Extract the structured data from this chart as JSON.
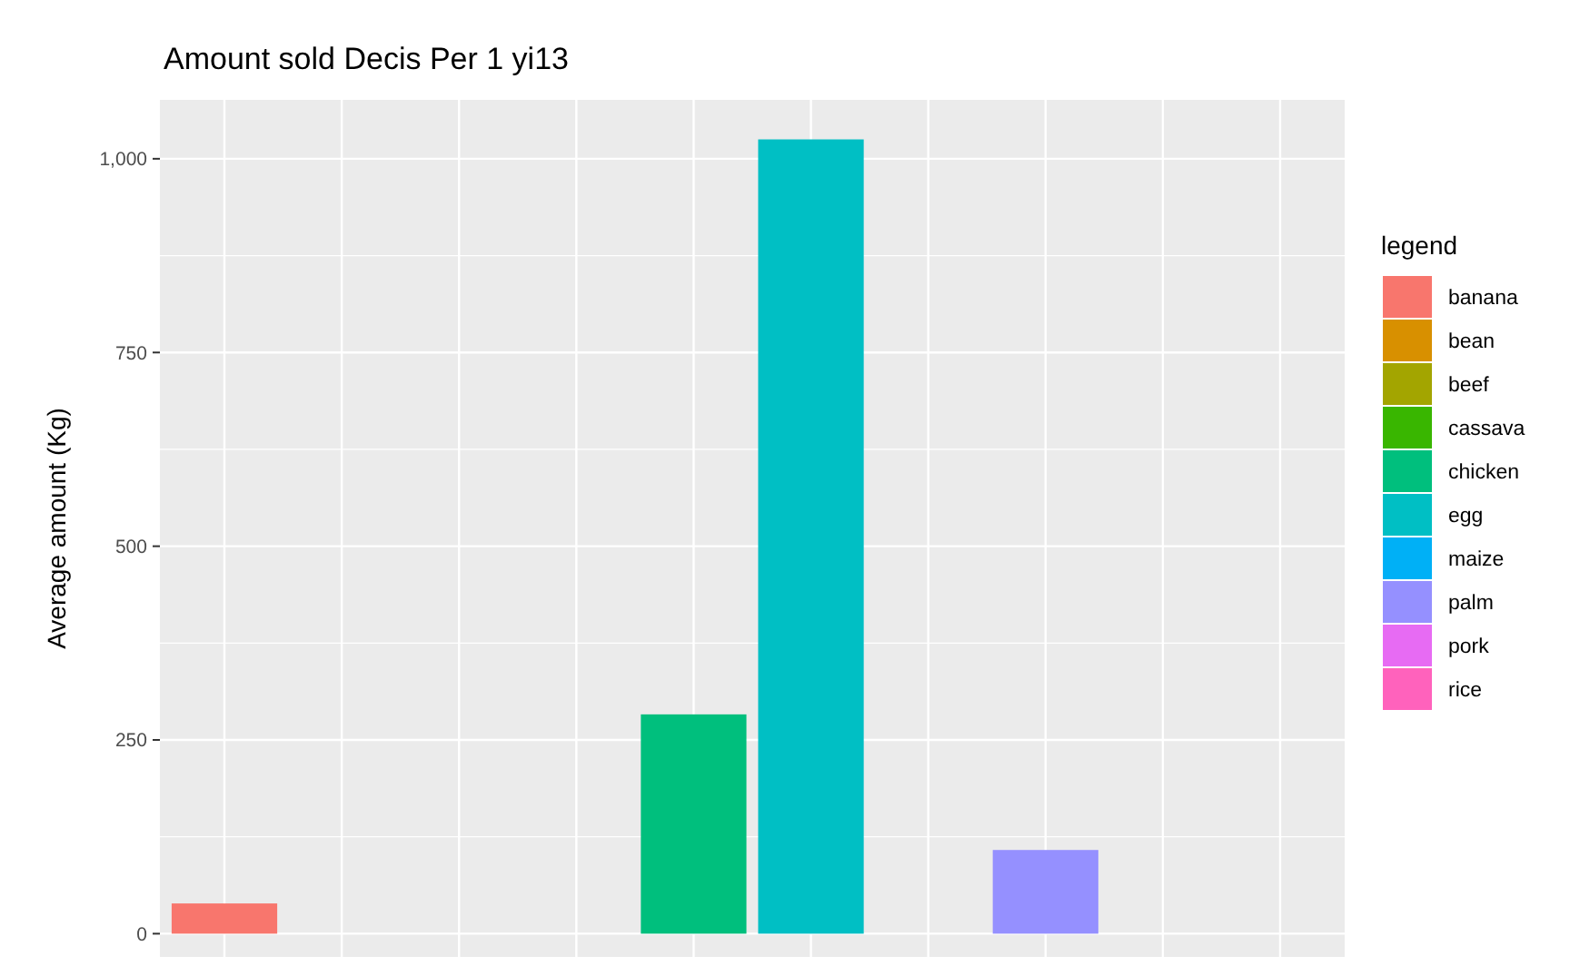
{
  "chart_data": {
    "type": "bar",
    "title": "Amount sold Decis Per 1 yi13",
    "ylabel": "Average amount (Kg)",
    "legend_title": "legend",
    "categories": [
      null,
      null,
      null,
      null,
      null,
      null,
      null,
      null,
      null,
      null
    ],
    "series": [
      {
        "name": "banana",
        "color": "#f8766d",
        "values": [
          39,
          null,
          null,
          null,
          null,
          null,
          null,
          null,
          null,
          null
        ]
      },
      {
        "name": "bean",
        "color": "#d89000",
        "values": [
          null,
          null,
          null,
          null,
          null,
          null,
          null,
          null,
          null,
          null
        ]
      },
      {
        "name": "beef",
        "color": "#a3a500",
        "values": [
          null,
          null,
          null,
          null,
          null,
          null,
          null,
          null,
          null,
          null
        ]
      },
      {
        "name": "cassava",
        "color": "#39b600",
        "values": [
          null,
          null,
          null,
          null,
          null,
          null,
          null,
          null,
          null,
          null
        ]
      },
      {
        "name": "chicken",
        "color": "#00bf7d",
        "values": [
          null,
          null,
          null,
          null,
          283,
          null,
          null,
          null,
          null,
          null
        ]
      },
      {
        "name": "egg",
        "color": "#00bfc4",
        "values": [
          null,
          null,
          null,
          null,
          null,
          1025,
          null,
          null,
          null,
          null
        ]
      },
      {
        "name": "maize",
        "color": "#00b0f6",
        "values": [
          null,
          null,
          null,
          null,
          null,
          null,
          null,
          null,
          null,
          null
        ]
      },
      {
        "name": "palm",
        "color": "#9590ff",
        "values": [
          null,
          null,
          null,
          null,
          null,
          null,
          null,
          108,
          null,
          null
        ]
      },
      {
        "name": "pork",
        "color": "#e76bf3",
        "values": [
          null,
          null,
          null,
          null,
          null,
          null,
          null,
          null,
          null,
          null
        ]
      },
      {
        "name": "rice",
        "color": "#ff62bc",
        "values": [
          null,
          null,
          null,
          null,
          null,
          null,
          null,
          null,
          null,
          null
        ]
      }
    ],
    "ylim": [
      -30,
      1076
    ],
    "yticks": [
      0,
      250,
      500,
      750,
      {
        "value": 1000,
        "label": "1,000"
      }
    ],
    "grid": true,
    "legend": "right"
  }
}
